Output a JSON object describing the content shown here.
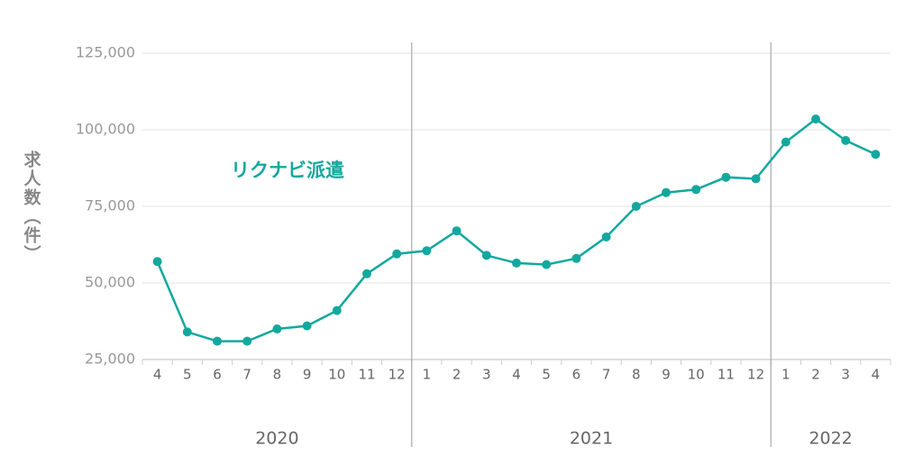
{
  "chart_data": {
    "type": "line",
    "y_label": "求人数（件）",
    "annotation": "リクナビ派遣",
    "category_groups": [
      {
        "name": "2020",
        "categories": [
          "4",
          "5",
          "6",
          "7",
          "8",
          "9",
          "10",
          "11",
          "12"
        ]
      },
      {
        "name": "2021",
        "categories": [
          "1",
          "2",
          "3",
          "4",
          "5",
          "6",
          "7",
          "8",
          "9",
          "10",
          "11",
          "12"
        ]
      },
      {
        "name": "2022",
        "categories": [
          "1",
          "2",
          "3",
          "4"
        ]
      }
    ],
    "series": [
      {
        "name": "リクナビ派遣",
        "color": "#13a89e",
        "values": [
          57000,
          34000,
          31000,
          31000,
          35000,
          36000,
          41000,
          53000,
          59500,
          60500,
          67000,
          59000,
          56500,
          56000,
          58000,
          65000,
          75000,
          79500,
          80500,
          84500,
          84000,
          96000,
          103500,
          96500,
          92000
        ]
      }
    ],
    "ylim": [
      25000,
      125000
    ],
    "yticks": [
      {
        "value": 25000,
        "label": "25,000"
      },
      {
        "value": 50000,
        "label": "50,000"
      },
      {
        "value": 75000,
        "label": "75,000"
      },
      {
        "value": 100000,
        "label": "100,000"
      },
      {
        "value": 125000,
        "label": "125,000"
      }
    ],
    "grid": true
  }
}
